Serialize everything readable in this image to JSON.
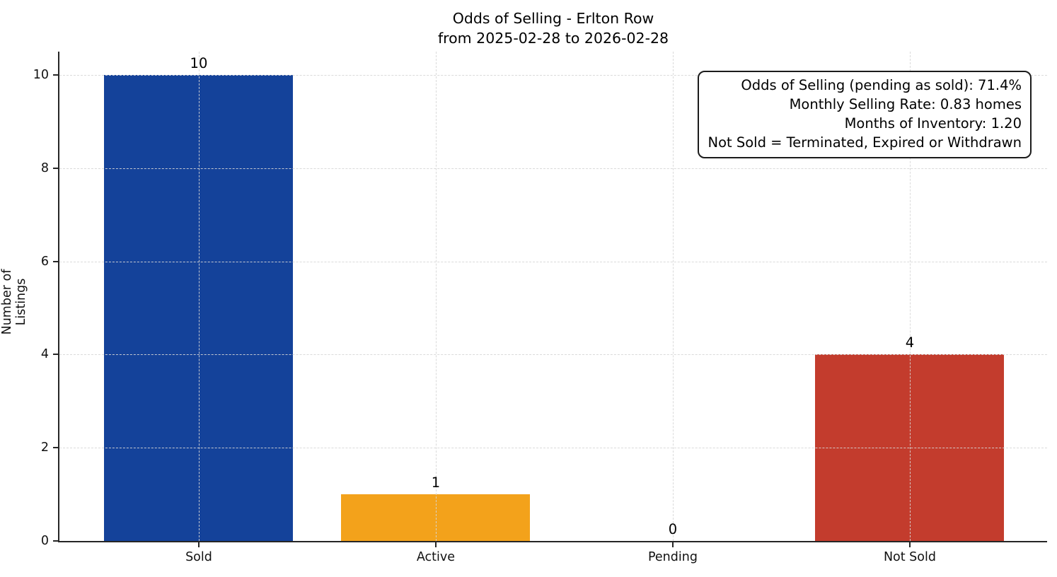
{
  "chart_data": {
    "type": "bar",
    "title": "Odds of Selling - Erlton Row",
    "subtitle": "from 2025-02-28 to 2026-02-28",
    "categories": [
      "Sold",
      "Active",
      "Pending",
      "Not Sold"
    ],
    "values": [
      10,
      1,
      0,
      4
    ],
    "value_labels": [
      "10",
      "1",
      "0",
      "4"
    ],
    "bar_colors": [
      "#14429A",
      "#F3A21B",
      null,
      "#C33C2D"
    ],
    "xlabel": "",
    "ylabel": "Number of Listings",
    "yticks": [
      0,
      2,
      4,
      6,
      8,
      10
    ],
    "ylim": [
      0,
      10.5
    ],
    "grid": {
      "on": true,
      "style": "dashed",
      "color": "#d6d6d6"
    },
    "legend_position": "none",
    "annotation": {
      "lines": [
        "Odds of Selling (pending as sold): 71.4%",
        "Monthly Selling Rate: 0.83 homes",
        "Months of Inventory: 1.20",
        "Not Sold = Terminated, Expired or Withdrawn"
      ]
    }
  }
}
